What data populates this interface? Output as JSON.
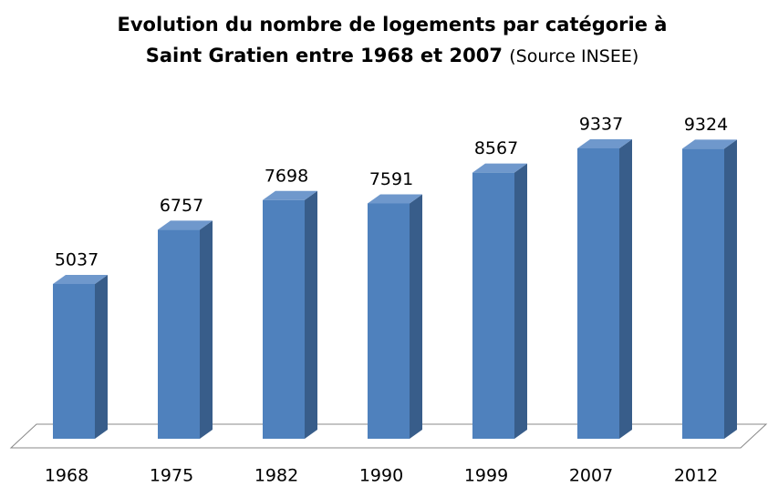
{
  "chart_data": {
    "type": "bar3d",
    "title": [
      "Evolution du nombre de logements par catégorie à",
      "Saint Gratien entre 1968 et 2007"
    ],
    "source": "(Source INSEE)",
    "categories": [
      "1968",
      "1975",
      "1982",
      "1990",
      "1999",
      "2007",
      "2012"
    ],
    "values": [
      5037,
      6757,
      7698,
      7591,
      8567,
      9337,
      9324
    ],
    "color": "#4f81bd",
    "ylim": [
      0,
      10000
    ]
  }
}
